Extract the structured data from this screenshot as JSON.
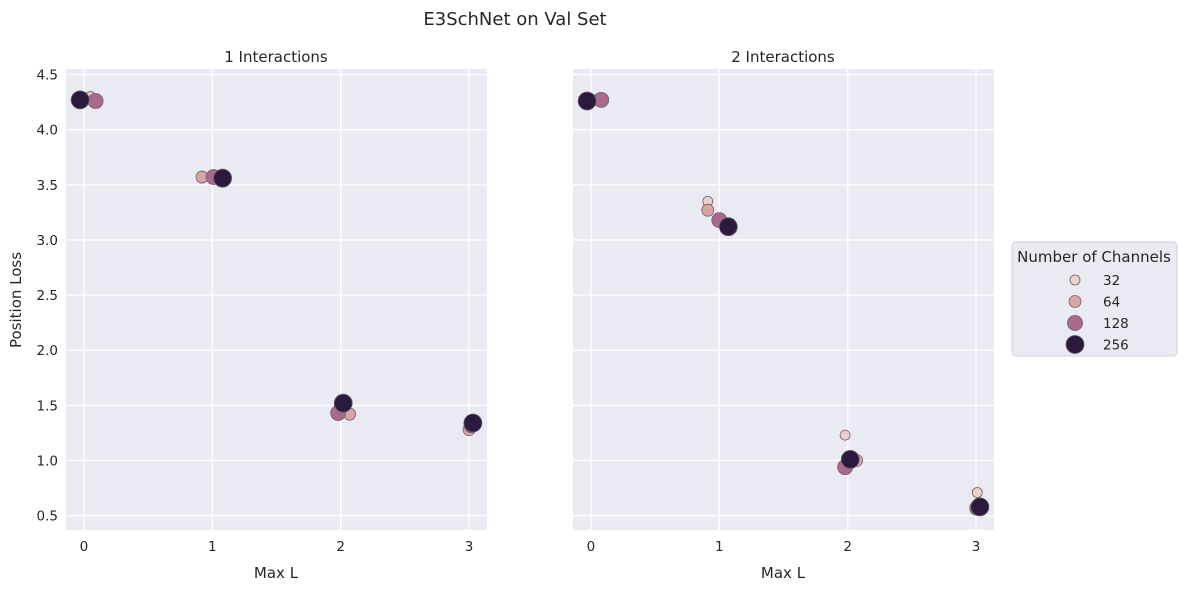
{
  "chart_data": {
    "type": "scatter",
    "title": "E3SchNet on Val Set",
    "ylabel": "Position Loss",
    "legend": {
      "title": "Number of Channels",
      "placement": "right",
      "entries": [
        {
          "label": "32",
          "color": "#ecd0c9"
        },
        {
          "label": "64",
          "color": "#d8a5a7"
        },
        {
          "label": "128",
          "color": "#a9698c"
        },
        {
          "label": "256",
          "color": "#2b1a3d"
        }
      ]
    },
    "panels": [
      {
        "title": "1 Interactions",
        "xlabel": "Max L",
        "x_ticks": [
          "0",
          "1",
          "2",
          "3"
        ],
        "xlim": [
          -0.14,
          3.14
        ],
        "y_ticks": [
          "0.5",
          "1.0",
          "1.5",
          "2.0",
          "2.5",
          "3.0",
          "3.5",
          "4.0",
          "4.5"
        ],
        "ylim": [
          0.37,
          4.55
        ],
        "grid": true,
        "points": [
          {
            "x": 0.05,
            "y": 4.3,
            "channels": "32"
          },
          {
            "x": 0.0,
            "y": 4.27,
            "channels": "64"
          },
          {
            "x": 0.09,
            "y": 4.26,
            "channels": "128"
          },
          {
            "x": -0.03,
            "y": 4.27,
            "channels": "256"
          },
          {
            "x": 0.92,
            "y": 3.57,
            "channels": "64"
          },
          {
            "x": 1.01,
            "y": 3.57,
            "channels": "128"
          },
          {
            "x": 1.08,
            "y": 3.56,
            "channels": "256"
          },
          {
            "x": 1.99,
            "y": 1.49,
            "channels": "32"
          },
          {
            "x": 2.07,
            "y": 1.42,
            "channels": "64"
          },
          {
            "x": 1.98,
            "y": 1.43,
            "channels": "128"
          },
          {
            "x": 2.02,
            "y": 1.52,
            "channels": "256"
          },
          {
            "x": 3.01,
            "y": 1.31,
            "channels": "32"
          },
          {
            "x": 3.0,
            "y": 1.28,
            "channels": "64"
          },
          {
            "x": 3.02,
            "y": 1.32,
            "channels": "128"
          },
          {
            "x": 3.03,
            "y": 1.34,
            "channels": "256"
          }
        ]
      },
      {
        "title": "2 Interactions",
        "xlabel": "Max L",
        "x_ticks": [
          "0",
          "1",
          "2",
          "3"
        ],
        "xlim": [
          -0.14,
          3.14
        ],
        "y_ticks": [
          "0.5",
          "1.0",
          "1.5",
          "2.0",
          "2.5",
          "3.0",
          "3.5",
          "4.0",
          "4.5"
        ],
        "ylim": [
          0.37,
          4.55
        ],
        "grid": true,
        "points": [
          {
            "x": 0.06,
            "y": 4.28,
            "channels": "32"
          },
          {
            "x": 0.0,
            "y": 4.27,
            "channels": "64"
          },
          {
            "x": 0.08,
            "y": 4.27,
            "channels": "128"
          },
          {
            "x": -0.03,
            "y": 4.26,
            "channels": "256"
          },
          {
            "x": 0.91,
            "y": 3.35,
            "channels": "32"
          },
          {
            "x": 0.91,
            "y": 3.27,
            "channels": "64"
          },
          {
            "x": 1.0,
            "y": 3.18,
            "channels": "128"
          },
          {
            "x": 1.07,
            "y": 3.12,
            "channels": "256"
          },
          {
            "x": 1.98,
            "y": 1.23,
            "channels": "32"
          },
          {
            "x": 2.07,
            "y": 1.0,
            "channels": "64"
          },
          {
            "x": 1.98,
            "y": 0.94,
            "channels": "128"
          },
          {
            "x": 2.02,
            "y": 1.01,
            "channels": "256"
          },
          {
            "x": 3.01,
            "y": 0.71,
            "channels": "32"
          },
          {
            "x": 3.0,
            "y": 0.56,
            "channels": "64"
          },
          {
            "x": 3.01,
            "y": 0.57,
            "channels": "128"
          },
          {
            "x": 3.03,
            "y": 0.58,
            "channels": "256"
          }
        ]
      }
    ]
  }
}
